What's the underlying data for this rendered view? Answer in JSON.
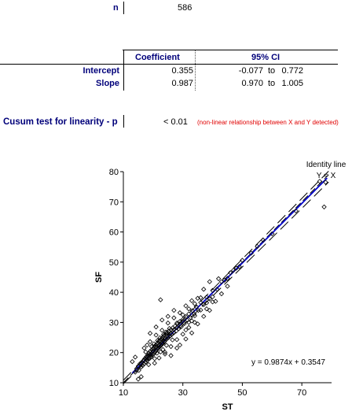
{
  "n_row": {
    "label": "n",
    "value": "586"
  },
  "table": {
    "header_coef": "Coefficient",
    "header_ci": "95% CI",
    "rows": [
      {
        "label": "Intercept",
        "coef": "0.355",
        "ci_low": "-0.077",
        "to": "to",
        "ci_high": "0.772"
      },
      {
        "label": "Slope",
        "coef": "0.987",
        "ci_low": "0.970",
        "to": "to",
        "ci_high": "1.005"
      }
    ]
  },
  "cusum": {
    "label": "Cusum test for linearity - p",
    "value": "< 0.01",
    "note": "(non-linear relationship between X and Y detected)"
  },
  "colors": {
    "label_navy": "#00007a",
    "note_red": "#e00000",
    "regression_blue": "#0000cc"
  },
  "chart_data": {
    "type": "scatter",
    "xlabel": "ST",
    "ylabel": "SF",
    "xlim": [
      10,
      80
    ],
    "ylim": [
      10,
      80
    ],
    "xticks": [
      10,
      30,
      50,
      70
    ],
    "yticks": [
      10,
      20,
      30,
      40,
      50,
      60,
      70,
      80
    ],
    "grid": false,
    "identity_label_line1": "Identity line",
    "identity_label_line2": "Y = X",
    "equation": "y = 0.9874x + 0.3547",
    "regression": {
      "slope": 0.9874,
      "intercept": 0.3547
    },
    "ci_band": {
      "lower_slope": 0.97,
      "lower_intercept": -0.077,
      "upper_slope": 1.005,
      "upper_intercept": 0.772
    },
    "points": [
      [
        14,
        13.5
      ],
      [
        14.5,
        14.2
      ],
      [
        15,
        15.5
      ],
      [
        15.2,
        14.1
      ],
      [
        15.6,
        16.3
      ],
      [
        16,
        15.2
      ],
      [
        16.3,
        16.9
      ],
      [
        16.5,
        15.7
      ],
      [
        16.8,
        17.4
      ],
      [
        17,
        16.2
      ],
      [
        17.2,
        18.0
      ],
      [
        17.5,
        16.8
      ],
      [
        17.7,
        18.6
      ],
      [
        18,
        17.3
      ],
      [
        18.2,
        19.1
      ],
      [
        18.4,
        17.9
      ],
      [
        18.6,
        19.8
      ],
      [
        18.9,
        18.1
      ],
      [
        19,
        20.4
      ],
      [
        19.3,
        18.6
      ],
      [
        19.5,
        20.9
      ],
      [
        19.7,
        19.2
      ],
      [
        20,
        21.3
      ],
      [
        20.2,
        19.5
      ],
      [
        20.4,
        21.9
      ],
      [
        20.6,
        20.1
      ],
      [
        20.8,
        22.4
      ],
      [
        21,
        20.6
      ],
      [
        21.2,
        22.8
      ],
      [
        21.4,
        21.1
      ],
      [
        21.6,
        23.2
      ],
      [
        21.8,
        21.5
      ],
      [
        22,
        23.8
      ],
      [
        22.2,
        21.9
      ],
      [
        22.4,
        24.1
      ],
      [
        22.6,
        22.3
      ],
      [
        22.8,
        24.6
      ],
      [
        23,
        22.8
      ],
      [
        23.2,
        25.0
      ],
      [
        23.4,
        23.1
      ],
      [
        23.6,
        25.5
      ],
      [
        23.8,
        23.6
      ],
      [
        24,
        25.9
      ],
      [
        24.2,
        24.1
      ],
      [
        24.4,
        26.3
      ],
      [
        24.6,
        24.5
      ],
      [
        24.8,
        26.7
      ],
      [
        25,
        25.0
      ],
      [
        25.3,
        27.1
      ],
      [
        25.6,
        25.5
      ],
      [
        26,
        27.6
      ],
      [
        26.3,
        26.0
      ],
      [
        26.6,
        28.2
      ],
      [
        27,
        26.6
      ],
      [
        27.4,
        28.8
      ],
      [
        27.8,
        27.2
      ],
      [
        28.2,
        29.5
      ],
      [
        28.6,
        27.9
      ],
      [
        29,
        30.3
      ],
      [
        29.5,
        28.6
      ],
      [
        30,
        31.0
      ],
      [
        30.5,
        29.6
      ],
      [
        31,
        31.9
      ],
      [
        31.5,
        30.7
      ],
      [
        32,
        32.8
      ],
      [
        32.6,
        31.6
      ],
      [
        33.2,
        33.9
      ],
      [
        33.8,
        32.8
      ],
      [
        34.5,
        35.2
      ],
      [
        35.2,
        34.0
      ],
      [
        36,
        36.6
      ],
      [
        37,
        35.9
      ],
      [
        38,
        38.4
      ],
      [
        39,
        37.8
      ],
      [
        40,
        40.6
      ],
      [
        41.5,
        41.0
      ],
      [
        43,
        43.5
      ],
      [
        45,
        44.6
      ],
      [
        47,
        47.3
      ],
      [
        49,
        48.5
      ],
      [
        18,
        22.5
      ],
      [
        19,
        23.6
      ],
      [
        20.5,
        16.5
      ],
      [
        21,
        25.8
      ],
      [
        22,
        18.2
      ],
      [
        23,
        27.4
      ],
      [
        24,
        20.1
      ],
      [
        25,
        29.8
      ],
      [
        26,
        22.0
      ],
      [
        27,
        31.5
      ],
      [
        28,
        24.3
      ],
      [
        29,
        33.2
      ],
      [
        30,
        26.1
      ],
      [
        31,
        35.5
      ],
      [
        32,
        28.3
      ],
      [
        33,
        37.2
      ],
      [
        34,
        30.0
      ],
      [
        22.5,
        37.5
      ],
      [
        15,
        11.2
      ],
      [
        16,
        12.0
      ],
      [
        13,
        17.0
      ],
      [
        14,
        18.5
      ],
      [
        17,
        21.5
      ],
      [
        35,
        38.0
      ],
      [
        37,
        41.0
      ],
      [
        40,
        36.8
      ],
      [
        42,
        44.5
      ],
      [
        38,
        34.5
      ],
      [
        31,
        27.5
      ],
      [
        33,
        30.5
      ],
      [
        20,
        20.5
      ],
      [
        21,
        21.8
      ],
      [
        22,
        22.4
      ],
      [
        23,
        23.3
      ],
      [
        24,
        24.6
      ],
      [
        19,
        19.4
      ],
      [
        18,
        18.7
      ],
      [
        17,
        17.5
      ],
      [
        16,
        16.4
      ],
      [
        25,
        25.6
      ],
      [
        26,
        26.4
      ],
      [
        27,
        27.6
      ],
      [
        28,
        28.3
      ],
      [
        29,
        29.5
      ],
      [
        30,
        30.4
      ],
      [
        20.3,
        22.9
      ],
      [
        21.3,
        19.8
      ],
      [
        22.3,
        24.9
      ],
      [
        23.3,
        21.0
      ],
      [
        24.3,
        26.8
      ],
      [
        17.5,
        20.2
      ],
      [
        18.5,
        16.0
      ],
      [
        19.5,
        22.0
      ],
      [
        20.5,
        18.0
      ],
      [
        21.5,
        24.0
      ],
      [
        22.5,
        20.2
      ],
      [
        23.5,
        26.0
      ],
      [
        24.5,
        22.4
      ],
      [
        25.5,
        28.0
      ],
      [
        26.5,
        24.2
      ],
      [
        28,
        29.8
      ],
      [
        30,
        32.5
      ],
      [
        32,
        34.5
      ],
      [
        34,
        36.2
      ],
      [
        36,
        38.2
      ],
      [
        32,
        30.0
      ],
      [
        34,
        32.2
      ],
      [
        36,
        34.1
      ],
      [
        38,
        36.5
      ],
      [
        40,
        38.5
      ],
      [
        44,
        44.0
      ],
      [
        46,
        46.5
      ],
      [
        48,
        48.0
      ],
      [
        50,
        50.6
      ],
      [
        53,
        53.0
      ],
      [
        55,
        55.2
      ],
      [
        57,
        57.3
      ],
      [
        60,
        59.4
      ],
      [
        68,
        67.0
      ],
      [
        77.5,
        68.3
      ],
      [
        78,
        76.5
      ],
      [
        76,
        76.8
      ],
      [
        27,
        34.0
      ],
      [
        25,
        32.0
      ],
      [
        23,
        30.8
      ],
      [
        21,
        28.5
      ],
      [
        19,
        26.4
      ],
      [
        29,
        22.5
      ],
      [
        31,
        24.5
      ],
      [
        26,
        19.0
      ],
      [
        24,
        19.5
      ],
      [
        28,
        21.5
      ],
      [
        33,
        26.5
      ],
      [
        35,
        29.5
      ],
      [
        37,
        32.0
      ],
      [
        39,
        34.0
      ],
      [
        41,
        37.0
      ],
      [
        43,
        39.5
      ],
      [
        45,
        42.0
      ],
      [
        39,
        43.5
      ]
    ]
  }
}
